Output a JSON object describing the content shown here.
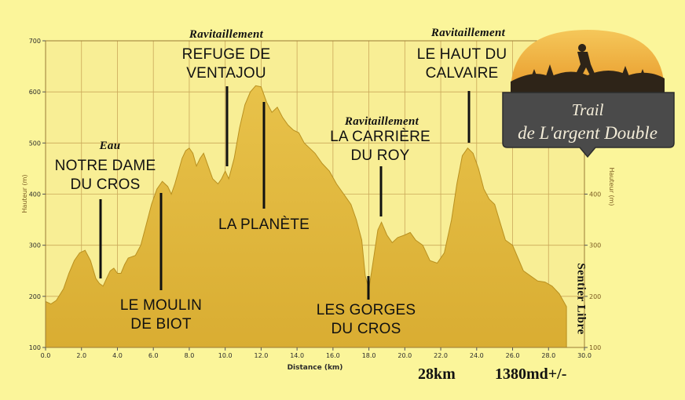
{
  "chart_data": {
    "type": "area",
    "title": "",
    "xlabel": "Distance (km)",
    "ylabel": "Hauteur (m)",
    "ylabel_right": "Hauteur (m)",
    "xlim": [
      0,
      30
    ],
    "ylim": [
      100,
      700
    ],
    "x_ticks": [
      "0.0",
      "2.0",
      "4.0",
      "6.0",
      "8.0",
      "10.0",
      "12.0",
      "14.0",
      "16.0",
      "18.0",
      "20.0",
      "22.0",
      "24.0",
      "26.0",
      "28.0",
      "30.0"
    ],
    "y_ticks": [
      "100",
      "200",
      "300",
      "400",
      "500",
      "600",
      "700"
    ],
    "y_ticks_right": [
      "100",
      "200",
      "300",
      "400"
    ],
    "grid": true,
    "colors": {
      "fill": "#e2b93c",
      "fill_dark": "#c99e25",
      "grid": "#caa85a",
      "background": "#fbf59a",
      "plot_background": "#f8ee95"
    },
    "series": [
      {
        "values": [
          [
            0.0,
            190
          ],
          [
            0.3,
            185
          ],
          [
            0.6,
            192
          ],
          [
            1.0,
            215
          ],
          [
            1.3,
            245
          ],
          [
            1.6,
            270
          ],
          [
            1.9,
            285
          ],
          [
            2.2,
            290
          ],
          [
            2.5,
            270
          ],
          [
            2.8,
            235
          ],
          [
            3.0,
            225
          ],
          [
            3.2,
            220
          ],
          [
            3.4,
            235
          ],
          [
            3.6,
            250
          ],
          [
            3.8,
            255
          ],
          [
            4.0,
            245
          ],
          [
            4.2,
            245
          ],
          [
            4.4,
            262
          ],
          [
            4.6,
            275
          ],
          [
            5.0,
            280
          ],
          [
            5.3,
            300
          ],
          [
            5.6,
            340
          ],
          [
            5.9,
            380
          ],
          [
            6.2,
            410
          ],
          [
            6.5,
            425
          ],
          [
            6.8,
            415
          ],
          [
            7.0,
            400
          ],
          [
            7.2,
            420
          ],
          [
            7.4,
            445
          ],
          [
            7.6,
            470
          ],
          [
            7.8,
            485
          ],
          [
            8.0,
            490
          ],
          [
            8.2,
            480
          ],
          [
            8.4,
            455
          ],
          [
            8.6,
            470
          ],
          [
            8.8,
            480
          ],
          [
            9.0,
            460
          ],
          [
            9.3,
            430
          ],
          [
            9.6,
            420
          ],
          [
            9.8,
            430
          ],
          [
            10.0,
            445
          ],
          [
            10.2,
            430
          ],
          [
            10.5,
            470
          ],
          [
            10.8,
            530
          ],
          [
            11.1,
            575
          ],
          [
            11.4,
            600
          ],
          [
            11.7,
            612
          ],
          [
            12.0,
            610
          ],
          [
            12.3,
            580
          ],
          [
            12.6,
            560
          ],
          [
            12.9,
            570
          ],
          [
            13.2,
            550
          ],
          [
            13.5,
            535
          ],
          [
            13.8,
            525
          ],
          [
            14.1,
            520
          ],
          [
            14.4,
            500
          ],
          [
            14.7,
            490
          ],
          [
            15.0,
            480
          ],
          [
            15.4,
            460
          ],
          [
            15.8,
            445
          ],
          [
            16.2,
            420
          ],
          [
            16.6,
            400
          ],
          [
            17.0,
            380
          ],
          [
            17.3,
            350
          ],
          [
            17.6,
            310
          ],
          [
            17.8,
            240
          ],
          [
            18.0,
            215
          ],
          [
            18.2,
            260
          ],
          [
            18.5,
            330
          ],
          [
            18.7,
            345
          ],
          [
            19.0,
            320
          ],
          [
            19.3,
            305
          ],
          [
            19.6,
            315
          ],
          [
            20.0,
            320
          ],
          [
            20.3,
            325
          ],
          [
            20.6,
            310
          ],
          [
            21.0,
            300
          ],
          [
            21.4,
            270
          ],
          [
            21.8,
            265
          ],
          [
            22.2,
            285
          ],
          [
            22.6,
            350
          ],
          [
            22.9,
            420
          ],
          [
            23.2,
            475
          ],
          [
            23.5,
            490
          ],
          [
            23.8,
            480
          ],
          [
            24.1,
            450
          ],
          [
            24.4,
            410
          ],
          [
            24.7,
            390
          ],
          [
            25.0,
            380
          ],
          [
            25.3,
            345
          ],
          [
            25.6,
            310
          ],
          [
            26.0,
            300
          ],
          [
            26.3,
            275
          ],
          [
            26.6,
            250
          ],
          [
            27.0,
            240
          ],
          [
            27.4,
            230
          ],
          [
            27.8,
            228
          ],
          [
            28.2,
            220
          ],
          [
            28.6,
            205
          ],
          [
            29.0,
            180
          ]
        ]
      }
    ],
    "annotations": [
      {
        "id": "notre-dame",
        "header": "Eau",
        "text": "NOTRE DAME\nDU CROS",
        "x": 2.9
      },
      {
        "id": "moulin",
        "header": "",
        "text": "LE MOULIN\nDE BIOT",
        "x": 6.3
      },
      {
        "id": "refuge",
        "header": "Ravitaillement",
        "text": "REFUGE DE\nVENTAJOU",
        "x": 10.0
      },
      {
        "id": "planete",
        "header": "",
        "text": "LA PLANÈTE",
        "x": 12.0
      },
      {
        "id": "carriere",
        "header": "Ravitaillement",
        "text": "LA CARRIÈRE\nDU ROY",
        "x": 18.6
      },
      {
        "id": "gorges",
        "header": "",
        "text": "LES GORGES\nDU CROS",
        "x": 17.9
      },
      {
        "id": "calvaire",
        "header": "Ravitaillement",
        "text": "LE HAUT DU\nCALVAIRE",
        "x": 23.4
      }
    ]
  },
  "side_label": "Sentier Libre",
  "distance_total": "28km",
  "elevation_total": "1380md+/-",
  "logo": {
    "line1": "Trail",
    "line2": "de L'argent Double"
  }
}
